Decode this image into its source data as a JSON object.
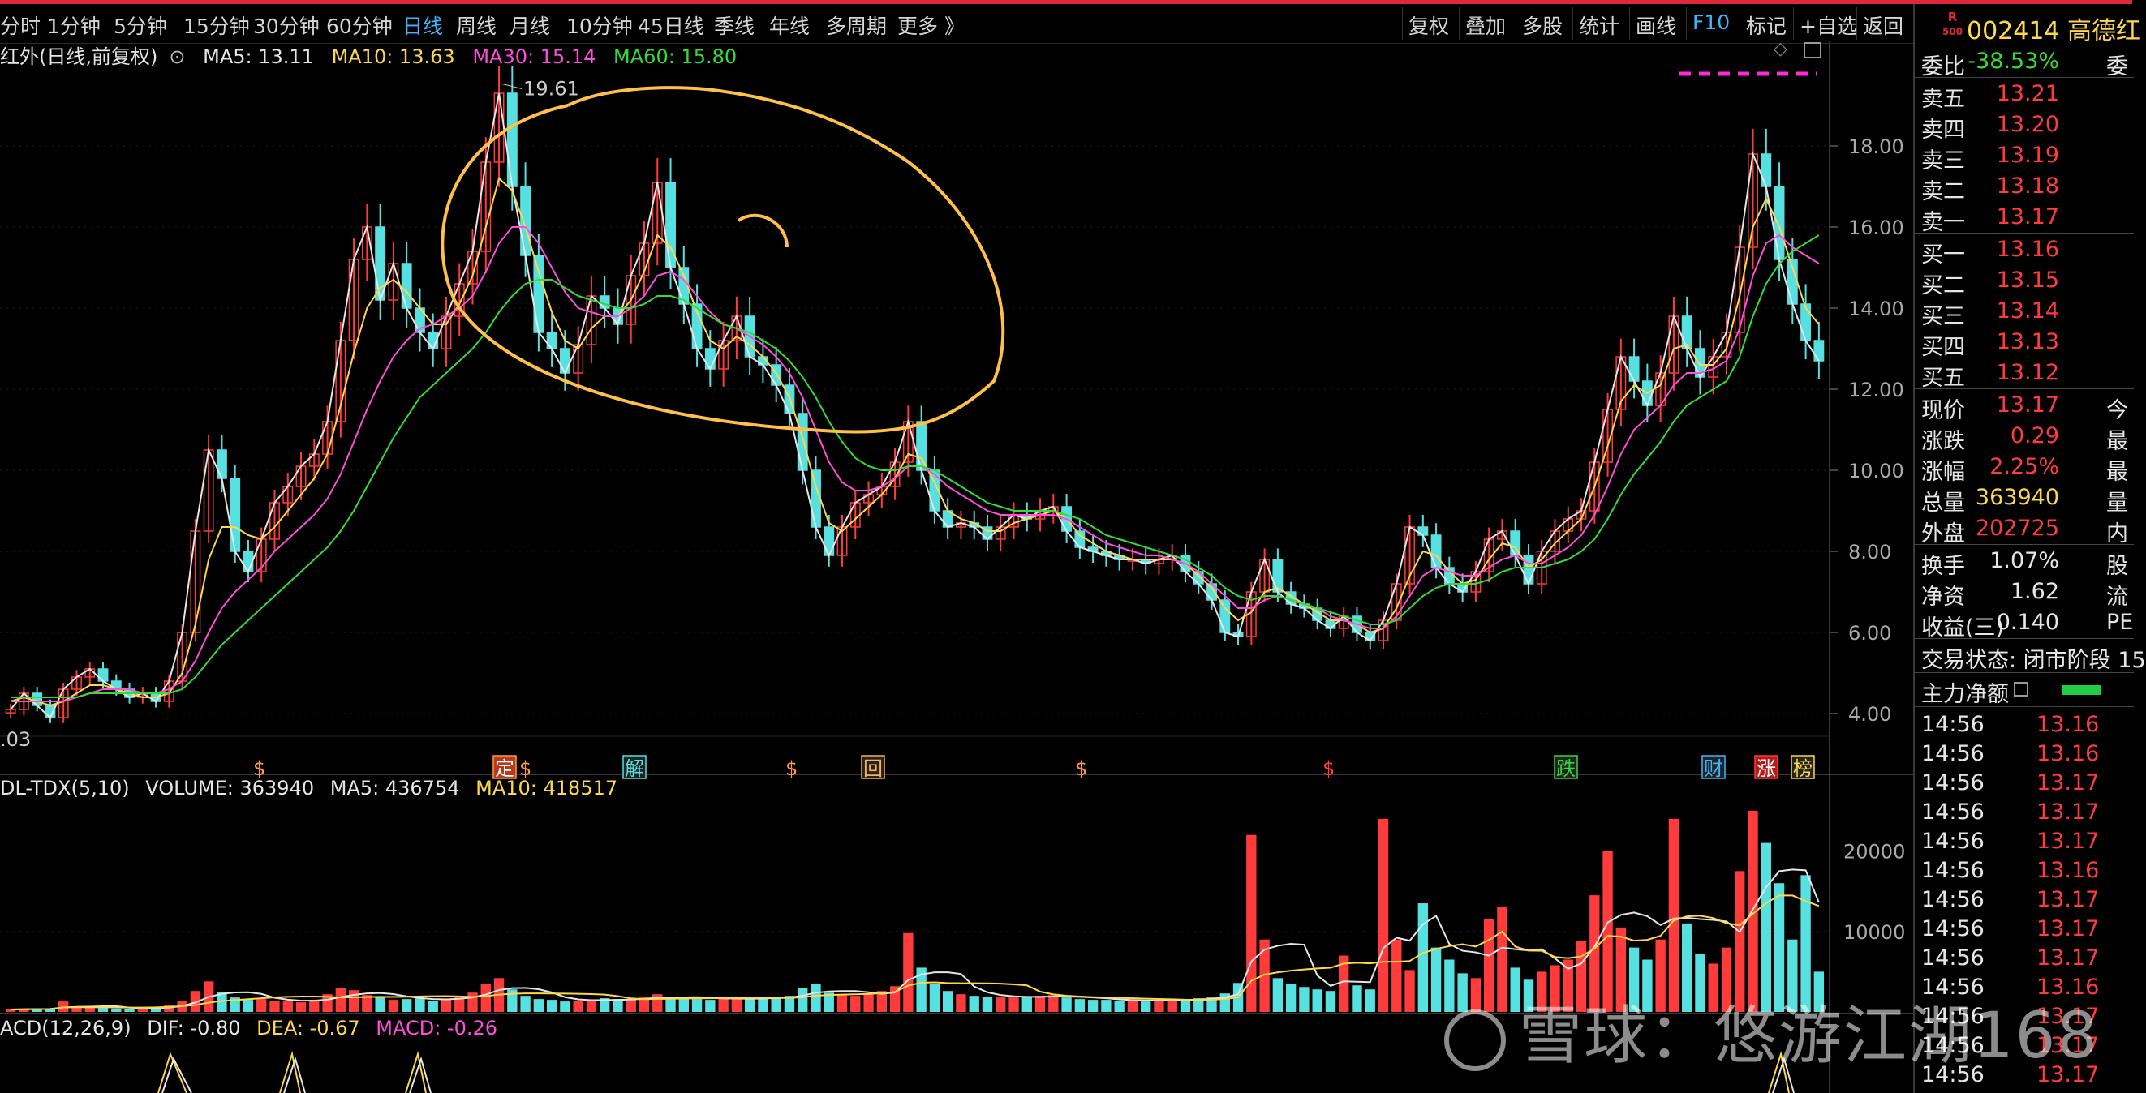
{
  "toolbar": {
    "periods": [
      "分时",
      "1分钟",
      "5分钟",
      "15分钟",
      "30分钟",
      "60分钟",
      "日线",
      "周线",
      "月线",
      "10分钟",
      "45日线",
      "季线",
      "年线",
      "多周期",
      "更多 》"
    ],
    "active_period": "日线",
    "right_buttons": [
      "复权",
      "叠加",
      "多股",
      "统计",
      "画线",
      "F10",
      "标记",
      "+自选",
      "返回"
    ]
  },
  "legend": {
    "name": "红外(日线,前复权)",
    "ma5": "MA5: 13.11",
    "ma10": "MA10: 13.63",
    "ma30": "MA30: 15.14",
    "ma60": "MA60: 15.80",
    "ma5_color": "#e6e6e6",
    "ma10_color": "#ffd84a",
    "ma30_color": "#ff4ddb",
    "ma60_color": "#33dd33"
  },
  "volume_legend": {
    "name": "DL-TDX(5,10)",
    "volume": "VOLUME: 363940",
    "ma5": "MA5: 436754",
    "ma10": "MA10: 418517"
  },
  "macd_legend": {
    "name": "ACD(12,26,9)",
    "dif": "DIF: -0.80",
    "dea": "DEA: -0.67",
    "macd": "MACD: -0.26"
  },
  "chart_data": {
    "type": "candlestick",
    "price_axis_ticks": [
      "18.00",
      "16.00",
      "14.00",
      "12.00",
      "10.00",
      "8.00",
      "6.00",
      "4.00"
    ],
    "price_range": [
      3.5,
      19.8
    ],
    "max_label": "19.61",
    "min_label": ".03",
    "volume_axis_ticks": [
      "20000",
      "10000"
    ],
    "close_series": [
      4.1,
      4.5,
      4.2,
      3.9,
      4.6,
      4.9,
      5.1,
      4.8,
      4.6,
      4.4,
      4.5,
      4.3,
      4.8,
      6.0,
      8.5,
      10.5,
      9.8,
      8.0,
      7.5,
      8.3,
      9.2,
      9.6,
      10.1,
      10.4,
      11.2,
      13.2,
      15.2,
      16.0,
      14.2,
      15.1,
      14.0,
      13.4,
      13.0,
      13.8,
      14.6,
      15.4,
      17.6,
      19.3,
      17.0,
      15.3,
      13.4,
      13.0,
      12.4,
      13.1,
      14.3,
      14.0,
      13.6,
      14.8,
      15.6,
      17.1,
      15.0,
      14.1,
      13.0,
      12.5,
      13.2,
      13.8,
      12.8,
      12.6,
      12.1,
      11.4,
      10.0,
      8.6,
      7.9,
      8.6,
      9.2,
      9.4,
      9.6,
      10.2,
      11.2,
      10.0,
      9.0,
      8.6,
      8.7,
      8.6,
      8.3,
      8.6,
      8.9,
      8.8,
      9.0,
      9.1,
      8.5,
      8.1,
      8.0,
      7.9,
      7.8,
      7.8,
      7.7,
      7.8,
      7.9,
      7.5,
      7.2,
      6.8,
      6.0,
      5.9,
      7.0,
      7.8,
      7.0,
      6.7,
      6.6,
      6.3,
      6.1,
      6.4,
      6.0,
      5.8,
      6.3,
      7.2,
      8.6,
      8.4,
      7.6,
      7.2,
      7.0,
      7.5,
      8.3,
      8.5,
      7.9,
      7.2,
      8.0,
      8.5,
      8.8,
      9.0,
      10.2,
      11.5,
      12.8,
      12.2,
      11.6,
      12.4,
      13.8,
      13.0,
      12.3,
      12.8,
      13.4,
      15.5,
      17.8,
      17.0,
      15.2,
      14.1,
      13.2,
      12.7
    ],
    "ma10_series": [
      4.3,
      4.4,
      4.3,
      4.2,
      4.3,
      4.5,
      4.7,
      4.7,
      4.6,
      4.5,
      4.4,
      4.4,
      4.5,
      5.0,
      6.2,
      7.8,
      8.6,
      8.6,
      8.4,
      8.3,
      8.6,
      9.0,
      9.4,
      9.8,
      10.4,
      11.6,
      12.9,
      14.0,
      14.5,
      14.7,
      14.4,
      14.0,
      13.6,
      13.6,
      14.1,
      14.8,
      16.0,
      17.2,
      16.9,
      16.0,
      14.9,
      13.9,
      13.2,
      13.0,
      13.5,
      13.8,
      13.8,
      14.2,
      14.9,
      15.8,
      15.5,
      14.8,
      13.9,
      13.2,
      13.0,
      13.3,
      13.1,
      12.8,
      12.4,
      11.8,
      10.8,
      9.6,
      8.7,
      8.5,
      8.8,
      9.1,
      9.4,
      9.8,
      10.4,
      10.3,
      9.7,
      9.0,
      8.8,
      8.7,
      8.5,
      8.5,
      8.7,
      8.8,
      8.9,
      9.0,
      8.8,
      8.4,
      8.2,
      8.0,
      7.9,
      7.8,
      7.8,
      7.8,
      7.8,
      7.7,
      7.4,
      7.1,
      6.6,
      6.3,
      6.5,
      7.0,
      7.1,
      6.9,
      6.7,
      6.5,
      6.3,
      6.3,
      6.2,
      6.0,
      6.1,
      6.6,
      7.4,
      8.0,
      7.9,
      7.5,
      7.2,
      7.3,
      7.8,
      8.2,
      8.1,
      7.6,
      7.8,
      8.2,
      8.5,
      8.8,
      9.6,
      10.6,
      11.7,
      12.1,
      11.9,
      12.1,
      13.0,
      13.1,
      12.6,
      12.6,
      13.0,
      14.3,
      16.0,
      16.7,
      16.0,
      15.0,
      14.0,
      13.6
    ],
    "ma30_series": [
      4.3,
      4.3,
      4.3,
      4.3,
      4.3,
      4.4,
      4.5,
      4.6,
      4.6,
      4.6,
      4.5,
      4.5,
      4.6,
      4.8,
      5.3,
      6.0,
      6.6,
      7.0,
      7.3,
      7.6,
      8.0,
      8.3,
      8.6,
      8.9,
      9.3,
      9.9,
      10.7,
      11.5,
      12.2,
      12.8,
      13.2,
      13.5,
      13.6,
      13.8,
      14.0,
      14.3,
      14.9,
      15.6,
      16.0,
      16.0,
      15.6,
      15.0,
      14.4,
      14.0,
      13.9,
      13.8,
      13.8,
      14.0,
      14.3,
      14.8,
      14.9,
      14.7,
      14.3,
      13.9,
      13.6,
      13.5,
      13.3,
      13.1,
      12.8,
      12.4,
      11.8,
      11.0,
      10.2,
      9.7,
      9.5,
      9.5,
      9.6,
      9.8,
      10.1,
      10.1,
      9.9,
      9.6,
      9.4,
      9.2,
      9.0,
      8.9,
      8.9,
      8.9,
      8.9,
      8.9,
      8.8,
      8.6,
      8.4,
      8.2,
      8.1,
      8.0,
      7.9,
      7.9,
      7.8,
      7.7,
      7.5,
      7.2,
      6.9,
      6.6,
      6.6,
      6.8,
      6.9,
      6.8,
      6.7,
      6.6,
      6.4,
      6.3,
      6.2,
      6.1,
      6.1,
      6.4,
      6.9,
      7.4,
      7.6,
      7.5,
      7.4,
      7.4,
      7.6,
      7.8,
      7.9,
      7.7,
      7.7,
      7.9,
      8.1,
      8.4,
      8.9,
      9.6,
      10.4,
      11.0,
      11.3,
      11.6,
      12.1,
      12.4,
      12.4,
      12.5,
      12.7,
      13.5,
      14.8,
      15.6,
      15.8,
      15.5,
      15.3,
      15.1
    ],
    "ma60_series": [
      4.4,
      4.4,
      4.4,
      4.4,
      4.4,
      4.4,
      4.5,
      4.5,
      4.5,
      4.5,
      4.5,
      4.5,
      4.5,
      4.6,
      4.9,
      5.3,
      5.7,
      6.0,
      6.3,
      6.6,
      6.9,
      7.2,
      7.5,
      7.8,
      8.1,
      8.5,
      9.0,
      9.6,
      10.2,
      10.8,
      11.3,
      11.8,
      12.1,
      12.4,
      12.7,
      13.0,
      13.4,
      13.9,
      14.3,
      14.6,
      14.7,
      14.7,
      14.5,
      14.3,
      14.2,
      14.1,
      14.0,
      14.0,
      14.1,
      14.3,
      14.3,
      14.2,
      14.0,
      13.8,
      13.6,
      13.5,
      13.4,
      13.2,
      13.0,
      12.7,
      12.3,
      11.8,
      11.2,
      10.7,
      10.3,
      10.1,
      10.0,
      10.0,
      10.1,
      10.1,
      10.0,
      9.8,
      9.6,
      9.4,
      9.2,
      9.1,
      9.0,
      9.0,
      9.0,
      9.0,
      8.9,
      8.8,
      8.6,
      8.4,
      8.3,
      8.2,
      8.1,
      8.0,
      7.9,
      7.8,
      7.6,
      7.4,
      7.1,
      6.9,
      6.8,
      6.9,
      6.9,
      6.8,
      6.7,
      6.6,
      6.5,
      6.4,
      6.3,
      6.2,
      6.2,
      6.3,
      6.6,
      6.9,
      7.1,
      7.2,
      7.2,
      7.2,
      7.3,
      7.5,
      7.6,
      7.6,
      7.6,
      7.7,
      7.8,
      8.0,
      8.3,
      8.8,
      9.4,
      9.9,
      10.3,
      10.7,
      11.2,
      11.6,
      11.8,
      12.0,
      12.2,
      12.8,
      13.8,
      14.6,
      15.1,
      15.4,
      15.6,
      15.8
    ],
    "volume_series": [
      300,
      350,
      420,
      380,
      1300,
      700,
      500,
      650,
      420,
      380,
      350,
      600,
      900,
      1400,
      2600,
      3800,
      2500,
      1800,
      1500,
      1600,
      1400,
      1300,
      1200,
      1500,
      2200,
      3000,
      2700,
      2100,
      1800,
      1500,
      1600,
      1700,
      1400,
      1600,
      1900,
      2400,
      3500,
      4200,
      2800,
      2000,
      1600,
      1500,
      1300,
      1400,
      1500,
      1700,
      1600,
      1500,
      1800,
      2200,
      1900,
      1700,
      1600,
      1500,
      1700,
      1800,
      1600,
      1700,
      1800,
      2000,
      3000,
      3500,
      2400,
      2100,
      2000,
      2200,
      2600,
      3200,
      9800,
      5500,
      3500,
      2600,
      2200,
      2000,
      1900,
      1800,
      1800,
      1900,
      2000,
      2100,
      1800,
      1600,
      1500,
      1500,
      1400,
      1400,
      1300,
      1500,
      1600,
      1600,
      1700,
      1800,
      2300,
      3600,
      22000,
      9000,
      4200,
      3500,
      3100,
      2800,
      2600,
      7000,
      3300,
      2800,
      24000,
      9000,
      5200,
      13500,
      8000,
      6500,
      4800,
      4200,
      11500,
      13000,
      5500,
      4000,
      5000,
      5800,
      6500,
      8800,
      14500,
      20000,
      10500,
      8000,
      6500,
      9000,
      24000,
      11000,
      7200,
      6000,
      8000,
      17500,
      25000,
      21000,
      16000,
      9000,
      17000,
      5000
    ],
    "markers": [
      "$",
      "定",
      "$",
      "解",
      "$",
      "回",
      "$",
      "$",
      "跌",
      "财",
      "涨",
      "榜"
    ]
  },
  "panel": {
    "code": "002414 高德红",
    "logo_top": "R",
    "logo_bottom": "500",
    "weibi_label": "委比",
    "weibi_value": "-38.53%",
    "weibi_r2": "委",
    "asks": [
      {
        "label": "卖五",
        "price": "13.21"
      },
      {
        "label": "卖四",
        "price": "13.20"
      },
      {
        "label": "卖三",
        "price": "13.19"
      },
      {
        "label": "卖二",
        "price": "13.18"
      },
      {
        "label": "卖一",
        "price": "13.17"
      }
    ],
    "bids": [
      {
        "label": "买一",
        "price": "13.16"
      },
      {
        "label": "买二",
        "price": "13.15"
      },
      {
        "label": "买三",
        "price": "13.14"
      },
      {
        "label": "买四",
        "price": "13.13"
      },
      {
        "label": "买五",
        "price": "13.12"
      }
    ],
    "quote": [
      {
        "label": "现价",
        "value": "13.17",
        "r2": "今",
        "color": "red"
      },
      {
        "label": "涨跌",
        "value": "0.29",
        "r2": "最",
        "color": "red"
      },
      {
        "label": "涨幅",
        "value": "2.25%",
        "r2": "最",
        "color": "red"
      },
      {
        "label": "总量",
        "value": "363940",
        "r2": "量",
        "color": "yellow"
      },
      {
        "label": "外盘",
        "value": "202725",
        "r2": "内",
        "color": "red"
      }
    ],
    "stats": [
      {
        "label": "换手",
        "value": "1.07%",
        "r2": "股",
        "color": "white"
      },
      {
        "label": "净资",
        "value": "1.62",
        "r2": "流",
        "color": "white"
      },
      {
        "label": "收益(三)",
        "value": "0.140",
        "r2": "PE",
        "color": "white"
      }
    ],
    "trade_state": "交易状态: 闭市阶段 15",
    "main_net_label": "主力净额",
    "ticks": [
      {
        "time": "14:56",
        "price": "13.16"
      },
      {
        "time": "14:56",
        "price": "13.16"
      },
      {
        "time": "14:56",
        "price": "13.17"
      },
      {
        "time": "14:56",
        "price": "13.17"
      },
      {
        "time": "14:56",
        "price": "13.17"
      },
      {
        "time": "14:56",
        "price": "13.16"
      },
      {
        "time": "14:56",
        "price": "13.17"
      },
      {
        "time": "14:56",
        "price": "13.17"
      },
      {
        "time": "14:56",
        "price": "13.17"
      },
      {
        "time": "14:56",
        "price": "13.16"
      },
      {
        "time": "14:56",
        "price": "13.17"
      },
      {
        "time": "14:56",
        "price": "13.17"
      },
      {
        "time": "14:56",
        "price": "13.17"
      }
    ]
  },
  "watermark": "雪球：悠游江湖168"
}
